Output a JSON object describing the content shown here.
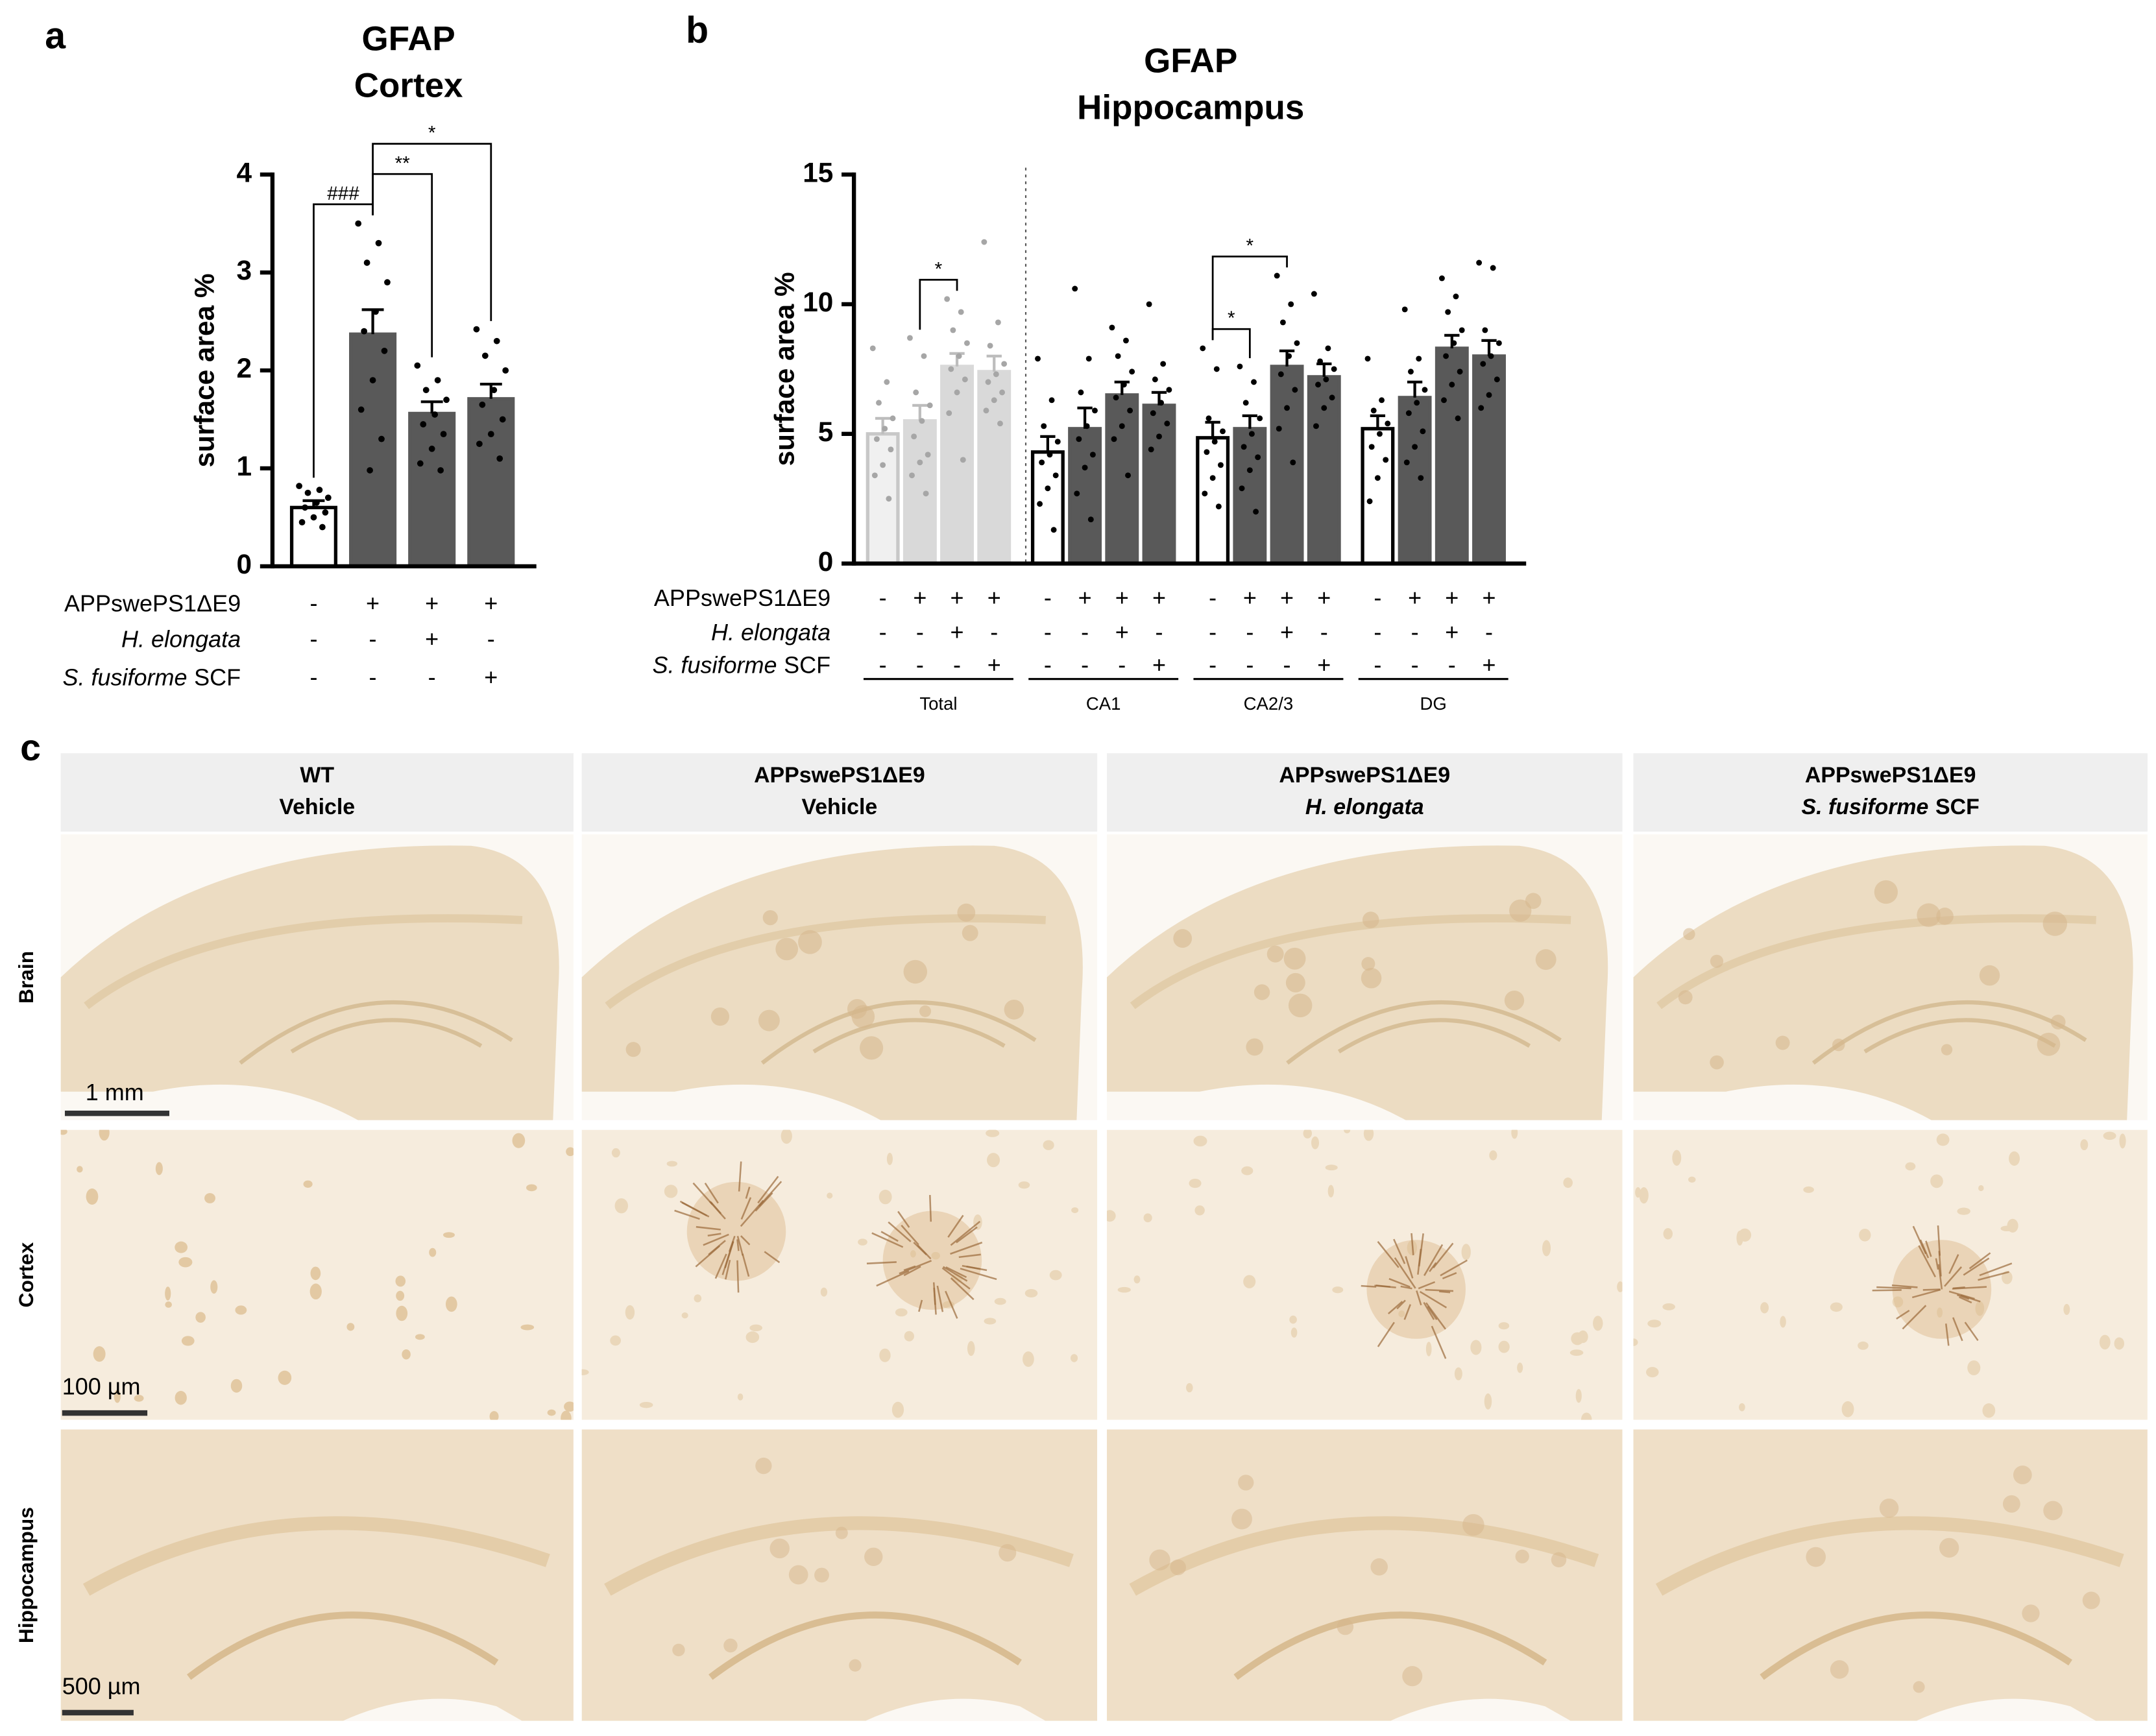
{
  "chart_data": [
    {
      "type": "bar",
      "panel_label": "a",
      "title": [
        "GFAP",
        "Cortex"
      ],
      "ylabel": "surface area %",
      "ylim": [
        0,
        4
      ],
      "yticks": [
        0,
        1,
        2,
        3,
        4
      ],
      "groups": [
        {
          "values": [
            0.6,
            2.37,
            1.56,
            1.71
          ],
          "errors": [
            0.07,
            0.25,
            0.12,
            0.15
          ],
          "colors": [
            "#ffffff",
            "#595959",
            "#595959",
            "#595959"
          ],
          "edges": [
            "#000000",
            "#595959",
            "#595959",
            "#595959"
          ],
          "error_color": "#000000",
          "point_color": "#000000",
          "points": [
            [
              0.82,
              0.78,
              0.75,
              0.7,
              0.65,
              0.6,
              0.55,
              0.5,
              0.45,
              0.4
            ],
            [
              3.5,
              3.3,
              3.1,
              2.9,
              2.6,
              2.4,
              2.2,
              1.9,
              1.6,
              1.3,
              0.98
            ],
            [
              2.05,
              1.9,
              1.8,
              1.7,
              1.55,
              1.45,
              1.35,
              1.2,
              1.05,
              0.98
            ],
            [
              2.42,
              2.3,
              2.15,
              2.0,
              1.8,
              1.65,
              1.5,
              1.35,
              1.25,
              1.1
            ]
          ]
        }
      ],
      "annotations": [
        {
          "from": 0,
          "to": 1,
          "label": "###"
        },
        {
          "from": 1,
          "to": 2,
          "label": "**"
        },
        {
          "from": 1,
          "to": 3,
          "label": "*"
        }
      ],
      "conditions": [
        {
          "label": [
            "APPswePS1ΔE9"
          ],
          "italic": [
            false
          ],
          "marks": [
            "-",
            "+",
            "+",
            "+"
          ]
        },
        {
          "label": [
            "H. elongata"
          ],
          "italic": [
            true
          ],
          "marks": [
            "-",
            "-",
            "+",
            "-"
          ]
        },
        {
          "label": [
            "S. fusiforme",
            "SCF"
          ],
          "italic": [
            true,
            false
          ],
          "marks": [
            "-",
            "-",
            "-",
            "+"
          ]
        }
      ]
    },
    {
      "type": "bar",
      "panel_label": "b",
      "title": [
        "GFAP",
        "Hippocampus"
      ],
      "ylabel": "surface area %",
      "ylim": [
        0,
        15
      ],
      "yticks": [
        0,
        5,
        10,
        15
      ],
      "groups": [
        {
          "name": "Total",
          "values": [
            5.0,
            5.5,
            7.6,
            7.4
          ],
          "errors": [
            0.6,
            0.6,
            0.5,
            0.6
          ],
          "colors": [
            "#f0f0f0",
            "#d9d9d9",
            "#d9d9d9",
            "#d9d9d9"
          ],
          "edges": [
            "#c8c8c8",
            "#d9d9d9",
            "#d9d9d9",
            "#d9d9d9"
          ],
          "error_color": "#bdbdbd",
          "point_color": "#a6a6a6",
          "points": [
            [
              8.3,
              7.0,
              6.2,
              5.6,
              5.2,
              4.8,
              4.4,
              3.8,
              3.4,
              2.5
            ],
            [
              8.7,
              8.0,
              6.6,
              6.1,
              5.5,
              4.9,
              4.2,
              3.9,
              3.4,
              2.7
            ],
            [
              10.2,
              9.7,
              9.0,
              8.5,
              8.0,
              7.5,
              7.1,
              6.6,
              5.8,
              4.0
            ],
            [
              12.4,
              9.3,
              8.4,
              7.7,
              7.3,
              7.0,
              6.6,
              6.3,
              5.9,
              5.4
            ]
          ]
        },
        {
          "name": "CA1",
          "values": [
            4.3,
            5.2,
            6.5,
            6.1
          ],
          "errors": [
            0.6,
            0.8,
            0.5,
            0.5
          ],
          "colors": [
            "#ffffff",
            "#595959",
            "#595959",
            "#595959"
          ],
          "edges": [
            "#000000",
            "#595959",
            "#595959",
            "#595959"
          ],
          "error_color": "#000000",
          "point_color": "#000000",
          "points": [
            [
              7.9,
              6.3,
              5.3,
              4.7,
              4.2,
              3.9,
              3.4,
              2.9,
              2.3,
              1.3
            ],
            [
              10.6,
              7.9,
              6.6,
              5.9,
              5.3,
              4.8,
              4.2,
              3.7,
              2.7,
              1.7
            ],
            [
              9.1,
              8.6,
              8.0,
              7.4,
              6.9,
              6.4,
              5.9,
              5.3,
              4.8,
              3.4
            ],
            [
              10.0,
              7.7,
              7.1,
              6.7,
              6.2,
              5.8,
              5.4,
              4.9,
              4.4
            ]
          ]
        },
        {
          "name": "CA2/3",
          "values": [
            4.85,
            5.2,
            7.6,
            7.2
          ],
          "errors": [
            0.6,
            0.5,
            0.6,
            0.5
          ],
          "colors": [
            "#ffffff",
            "#595959",
            "#595959",
            "#595959"
          ],
          "edges": [
            "#000000",
            "#595959",
            "#595959",
            "#595959"
          ],
          "error_color": "#000000",
          "point_color": "#000000",
          "points": [
            [
              8.3,
              7.5,
              5.6,
              5.1,
              4.7,
              4.3,
              3.8,
              3.3,
              2.7,
              2.2
            ],
            [
              7.6,
              7.0,
              6.2,
              5.6,
              5.0,
              4.5,
              4.1,
              3.6,
              2.9,
              2.0
            ],
            [
              11.1,
              10.0,
              9.3,
              8.5,
              8.0,
              7.3,
              6.7,
              6.0,
              5.2,
              3.9
            ],
            [
              10.4,
              8.3,
              7.8,
              7.5,
              7.1,
              6.9,
              6.4,
              6.0,
              5.3
            ]
          ]
        },
        {
          "name": "DG",
          "values": [
            5.2,
            6.4,
            8.3,
            8.0
          ],
          "errors": [
            0.5,
            0.6,
            0.5,
            0.6
          ],
          "colors": [
            "#ffffff",
            "#595959",
            "#595959",
            "#595959"
          ],
          "edges": [
            "#000000",
            "#595959",
            "#595959",
            "#595959"
          ],
          "error_color": "#000000",
          "point_color": "#000000",
          "points": [
            [
              7.9,
              6.3,
              5.9,
              5.4,
              5.0,
              4.5,
              4.0,
              3.3,
              2.4
            ],
            [
              9.8,
              7.9,
              7.4,
              6.7,
              6.2,
              5.8,
              5.1,
              4.5,
              3.9,
              3.3
            ],
            [
              11.0,
              10.3,
              9.7,
              9.0,
              8.5,
              8.0,
              7.4,
              6.9,
              6.3,
              5.6
            ],
            [
              11.6,
              11.4,
              9.0,
              8.5,
              8.0,
              7.7,
              7.1,
              6.5,
              6.0
            ]
          ]
        }
      ],
      "annotations": [
        {
          "from": 1,
          "to": 2,
          "label": "*"
        },
        {
          "from": 8,
          "to": 9,
          "label": "*"
        },
        {
          "from": 8,
          "to": 10,
          "label": "*"
        }
      ],
      "conditions": [
        {
          "label": [
            "APPswePS1ΔE9"
          ],
          "italic": [
            false
          ],
          "marks": [
            "-",
            "+",
            "+",
            "+",
            "-",
            "+",
            "+",
            "+",
            "-",
            "+",
            "+",
            "+",
            "-",
            "+",
            "+",
            "+"
          ]
        },
        {
          "label": [
            "H. elongata"
          ],
          "italic": [
            true
          ],
          "marks": [
            "-",
            "-",
            "+",
            "-",
            "-",
            "-",
            "+",
            "-",
            "-",
            "-",
            "+",
            "-",
            "-",
            "-",
            "+",
            "-"
          ]
        },
        {
          "label": [
            "S. fusiforme",
            "SCF"
          ],
          "italic": [
            true,
            false
          ],
          "marks": [
            "-",
            "-",
            "-",
            "+",
            "-",
            "-",
            "-",
            "+",
            "-",
            "-",
            "-",
            "+",
            "-",
            "-",
            "-",
            "+"
          ]
        }
      ]
    }
  ],
  "panel_c": {
    "label": "c",
    "columns": [
      {
        "line1": "WT",
        "line2": [
          "Vehicle"
        ],
        "italic": [
          false
        ]
      },
      {
        "line1": "APPswePS1ΔE9",
        "line2": [
          "Vehicle"
        ],
        "italic": [
          false
        ]
      },
      {
        "line1": "APPswePS1ΔE9",
        "line2": [
          "H. elongata"
        ],
        "italic": [
          true
        ]
      },
      {
        "line1": "APPswePS1ΔE9",
        "line2": [
          "S. fusiforme",
          "SCF"
        ],
        "italic": [
          true,
          false
        ]
      }
    ],
    "rows": [
      "Brain",
      "Cortex",
      "Hippocampus"
    ],
    "scale_bars": [
      "1 mm",
      "100 µm",
      "500 µm"
    ]
  }
}
